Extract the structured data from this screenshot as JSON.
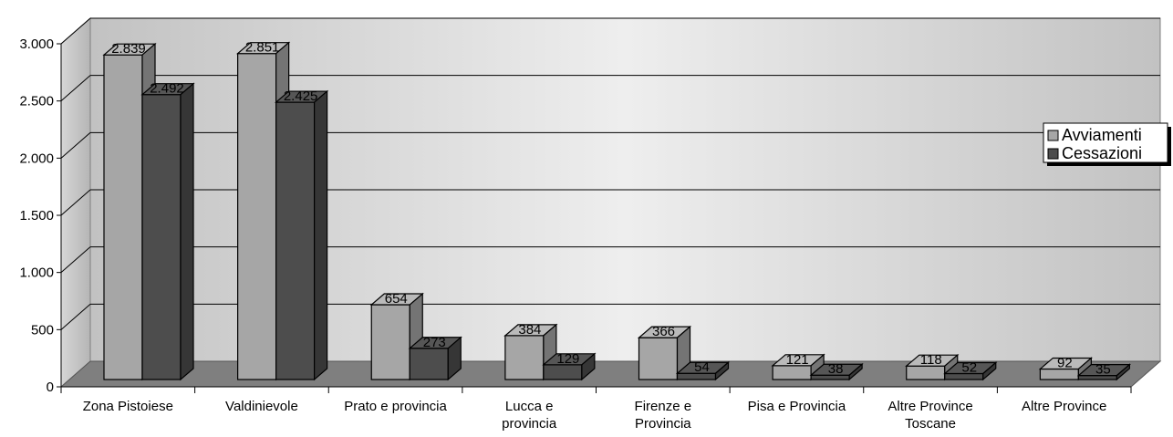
{
  "chart_data": {
    "type": "bar",
    "categories": [
      [
        "Zona Pistoiese"
      ],
      [
        "Valdinievole"
      ],
      [
        "Prato e provincia"
      ],
      [
        "Lucca e",
        "provincia"
      ],
      [
        "Firenze e",
        "Provincia"
      ],
      [
        "Pisa e Provincia"
      ],
      [
        "Altre Province",
        "Toscane"
      ],
      [
        "Altre Province"
      ]
    ],
    "series": [
      {
        "name": "Avviamenti",
        "color": "#a6a6a6",
        "values": [
          2839,
          2851,
          654,
          384,
          366,
          121,
          118,
          92
        ],
        "labels": [
          "2.839",
          "2.851",
          "654",
          "384",
          "366",
          "121",
          "118",
          "92"
        ]
      },
      {
        "name": "Cessazioni",
        "color": "#4d4d4d",
        "values": [
          2492,
          2425,
          273,
          129,
          54,
          38,
          52,
          35
        ],
        "labels": [
          "2.492",
          "2.425",
          "273",
          "129",
          "54",
          "38",
          "52",
          "35"
        ]
      }
    ],
    "yticks": [
      0,
      500,
      1000,
      1500,
      2000,
      2500,
      3000
    ],
    "ytick_labels": [
      "0",
      "500",
      "1.000",
      "1.500",
      "2.000",
      "2.500",
      "3.000"
    ],
    "ylim": [
      0,
      3000
    ],
    "title": "",
    "xlabel": "",
    "ylabel": "",
    "grid": true,
    "legend_position": "right"
  }
}
